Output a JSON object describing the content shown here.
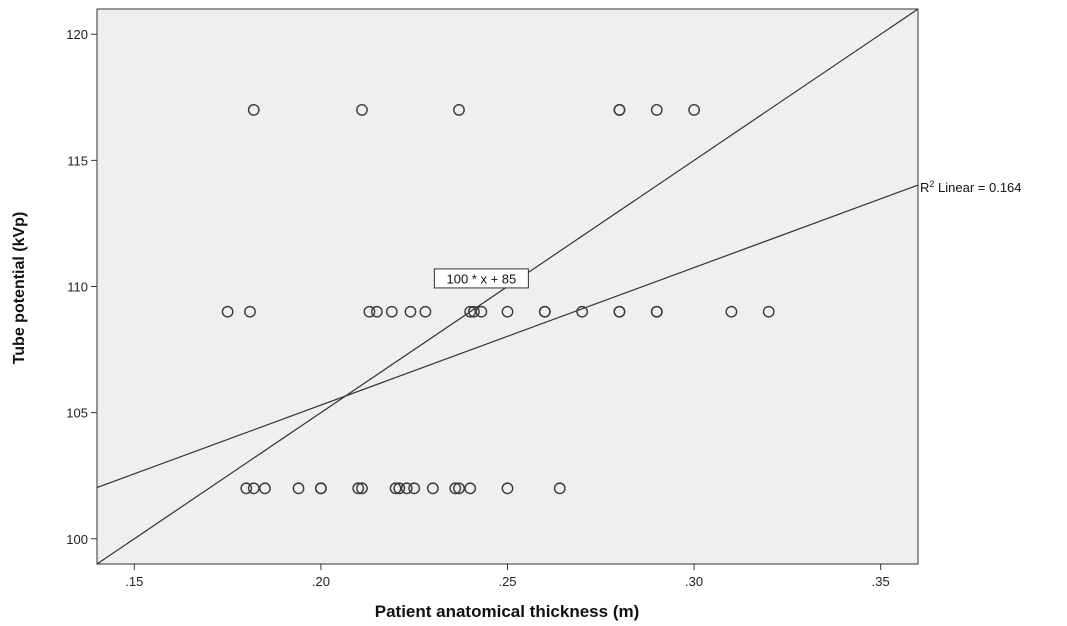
{
  "chart_data": {
    "type": "scatter",
    "title": "",
    "xlabel": "Patient anatomical thickness (m)",
    "ylabel": "Tube potential (kVp)",
    "xlim": [
      0.14,
      0.36
    ],
    "ylim": [
      99,
      121
    ],
    "x_ticks": [
      0.15,
      0.2,
      0.25,
      0.3,
      0.35
    ],
    "x_tick_labels": [
      ".15",
      ".20",
      ".25",
      ".30",
      ".35"
    ],
    "y_ticks": [
      100,
      105,
      110,
      115,
      120
    ],
    "y_tick_labels": [
      "100",
      "105",
      "110",
      "115",
      "120"
    ],
    "grid": false,
    "background": "#efefef",
    "marker_color": "#3a3a3a",
    "line_color": "#333333",
    "points": [
      {
        "x": 0.182,
        "y": 117
      },
      {
        "x": 0.211,
        "y": 117
      },
      {
        "x": 0.237,
        "y": 117
      },
      {
        "x": 0.28,
        "y": 117
      },
      {
        "x": 0.28,
        "y": 117
      },
      {
        "x": 0.29,
        "y": 117
      },
      {
        "x": 0.3,
        "y": 117
      },
      {
        "x": 0.175,
        "y": 109
      },
      {
        "x": 0.181,
        "y": 109
      },
      {
        "x": 0.213,
        "y": 109
      },
      {
        "x": 0.215,
        "y": 109
      },
      {
        "x": 0.219,
        "y": 109
      },
      {
        "x": 0.224,
        "y": 109
      },
      {
        "x": 0.228,
        "y": 109
      },
      {
        "x": 0.24,
        "y": 109
      },
      {
        "x": 0.241,
        "y": 109
      },
      {
        "x": 0.243,
        "y": 109
      },
      {
        "x": 0.25,
        "y": 109
      },
      {
        "x": 0.26,
        "y": 109
      },
      {
        "x": 0.26,
        "y": 109
      },
      {
        "x": 0.27,
        "y": 109
      },
      {
        "x": 0.28,
        "y": 109
      },
      {
        "x": 0.28,
        "y": 109
      },
      {
        "x": 0.29,
        "y": 109
      },
      {
        "x": 0.29,
        "y": 109
      },
      {
        "x": 0.31,
        "y": 109
      },
      {
        "x": 0.32,
        "y": 109
      },
      {
        "x": 0.18,
        "y": 102
      },
      {
        "x": 0.182,
        "y": 102
      },
      {
        "x": 0.185,
        "y": 102
      },
      {
        "x": 0.194,
        "y": 102
      },
      {
        "x": 0.2,
        "y": 102
      },
      {
        "x": 0.2,
        "y": 102
      },
      {
        "x": 0.21,
        "y": 102
      },
      {
        "x": 0.211,
        "y": 102
      },
      {
        "x": 0.22,
        "y": 102
      },
      {
        "x": 0.221,
        "y": 102
      },
      {
        "x": 0.223,
        "y": 102
      },
      {
        "x": 0.225,
        "y": 102
      },
      {
        "x": 0.23,
        "y": 102
      },
      {
        "x": 0.236,
        "y": 102
      },
      {
        "x": 0.237,
        "y": 102
      },
      {
        "x": 0.24,
        "y": 102
      },
      {
        "x": 0.25,
        "y": 102
      },
      {
        "x": 0.264,
        "y": 102
      }
    ],
    "lines": [
      {
        "label": "100 * x + 85",
        "slope": 100,
        "intercept": 85,
        "label_at": {
          "x": 0.243,
          "y": 110.3
        }
      },
      {
        "label_prefix": "R",
        "label_sup": "2",
        "label_suffix": " Linear = 0.164",
        "slope": 54.5,
        "intercept": 94.4,
        "label_side": "right-edge"
      }
    ]
  }
}
